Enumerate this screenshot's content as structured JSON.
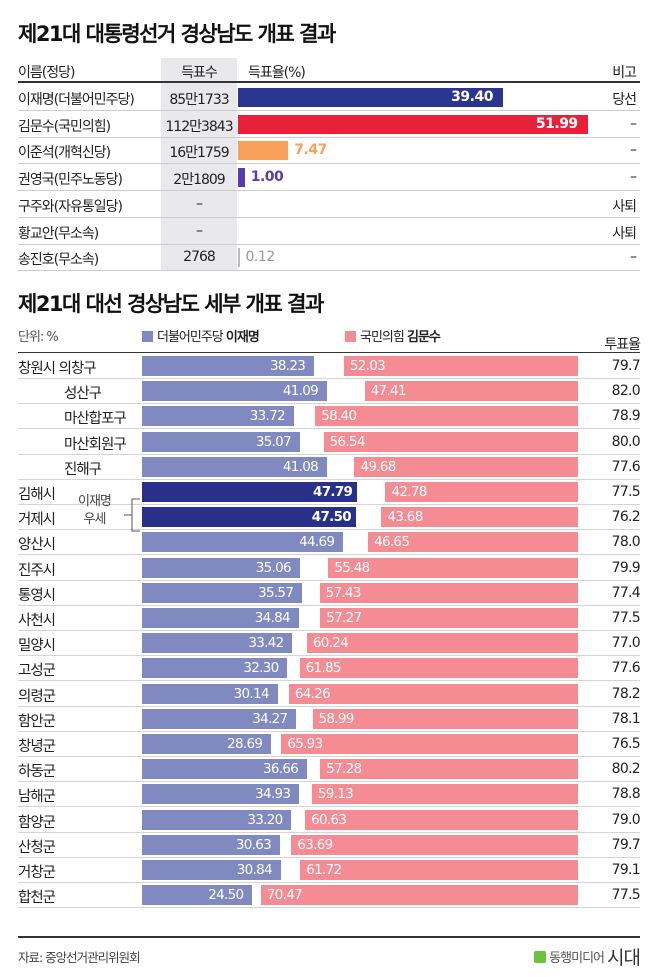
{
  "title": "제21대 대통령선거 경상남도 개표 결과",
  "colors": {
    "lee": "#2a3590",
    "kim": "#e8203a",
    "lee_jun": "#f9a05a",
    "kwon": "#5a3ab0",
    "other": "#999999",
    "lee_light": "#8189c1",
    "kim_light": "#f58b93",
    "lee_dominant": "#28308a"
  },
  "table": {
    "headers": {
      "name": "이름(정당)",
      "votes": "득표수",
      "rate": "득표율(%)",
      "note": "비고"
    },
    "rows": [
      {
        "name": "이재명(더불어민주당)",
        "votes": "85만1733",
        "rate": 39.4,
        "rate_label": "39.40",
        "note": "당선",
        "color_key": "lee",
        "label_inside": true
      },
      {
        "name": "김문수(국민의힘)",
        "votes": "112만3843",
        "rate": 51.99,
        "rate_label": "51.99",
        "note": "–",
        "color_key": "kim",
        "label_inside": true
      },
      {
        "name": "이준석(개혁신당)",
        "votes": "16만1759",
        "rate": 7.47,
        "rate_label": "7.47",
        "note": "–",
        "color_key": "lee_jun",
        "label_inside": false
      },
      {
        "name": "권영국(민주노동당)",
        "votes": "2만1809",
        "rate": 1.0,
        "rate_label": "1.00",
        "note": "–",
        "color_key": "kwon",
        "label_inside": false
      },
      {
        "name": "구주와(자유통일당)",
        "votes": "–",
        "rate": null,
        "rate_label": "",
        "note": "사퇴",
        "color_key": "other",
        "label_inside": false
      },
      {
        "name": "황교안(무소속)",
        "votes": "–",
        "rate": null,
        "rate_label": "",
        "note": "사퇴",
        "color_key": "other",
        "label_inside": false
      },
      {
        "name": "송진호(무소속)",
        "votes": "2768",
        "rate": 0.12,
        "rate_label": "0.12",
        "note": "–",
        "color_key": "other",
        "label_inside": false
      }
    ]
  },
  "chart_data": {
    "type": "bar",
    "title": "제21대 대선 경상남도 세부 개표 결과",
    "unit_label": "단위: %",
    "legend": [
      {
        "party": "더불어민주당",
        "name": "이재명"
      },
      {
        "party": "국민의힘",
        "name": "김문수"
      }
    ],
    "turnout_header": "투표율",
    "annotation": [
      "이재명",
      "우세"
    ],
    "categories": [
      "창원시 의창구",
      "성산구",
      "마산합포구",
      "마산회원구",
      "진해구",
      "김해시",
      "거제시",
      "양산시",
      "진주시",
      "통영시",
      "사천시",
      "밀양시",
      "고성군",
      "의령군",
      "함안군",
      "창녕군",
      "하동군",
      "남해군",
      "함양군",
      "산청군",
      "거창군",
      "합천군"
    ],
    "indent": [
      false,
      true,
      true,
      true,
      true,
      false,
      false,
      false,
      false,
      false,
      false,
      false,
      false,
      false,
      false,
      false,
      false,
      false,
      false,
      false,
      false,
      false
    ],
    "lee_dominant": [
      false,
      false,
      false,
      false,
      false,
      true,
      true,
      false,
      false,
      false,
      false,
      false,
      false,
      false,
      false,
      false,
      false,
      false,
      false,
      false,
      false,
      false
    ],
    "series": [
      {
        "name": "이재명",
        "values": [
          38.23,
          41.09,
          33.72,
          35.07,
          41.08,
          47.79,
          47.5,
          44.69,
          35.06,
          35.57,
          34.84,
          33.42,
          32.3,
          30.14,
          34.27,
          28.69,
          36.66,
          34.93,
          33.2,
          30.63,
          30.84,
          24.5
        ]
      },
      {
        "name": "김문수",
        "values": [
          52.03,
          47.41,
          58.4,
          56.54,
          49.68,
          42.78,
          43.68,
          46.65,
          55.48,
          57.43,
          57.27,
          60.24,
          61.85,
          64.26,
          58.99,
          65.93,
          57.28,
          59.13,
          60.63,
          63.69,
          61.72,
          70.47
        ]
      }
    ],
    "labels_lee": [
      "38.23",
      "41.09",
      "33.72",
      "35.07",
      "41.08",
      "47.79",
      "47.50",
      "44.69",
      "35.06",
      "35.57",
      "34.84",
      "33.42",
      "32.30",
      "30.14",
      "34.27",
      "28.69",
      "36.66",
      "34.93",
      "33.20",
      "30.63",
      "30.84",
      "24.50"
    ],
    "labels_kim": [
      "52.03",
      "47.41",
      "58.40",
      "56.54",
      "49.68",
      "42.78",
      "43.68",
      "46.65",
      "55.48",
      "57.43",
      "57.27",
      "60.24",
      "61.85",
      "64.26",
      "58.99",
      "65.93",
      "57.28",
      "59.13",
      "60.63",
      "63.69",
      "61.72",
      "70.47"
    ],
    "turnout": [
      "79.7",
      "82.0",
      "78.9",
      "80.0",
      "77.6",
      "77.5",
      "76.2",
      "78.0",
      "79.9",
      "77.4",
      "77.5",
      "77.0",
      "77.6",
      "78.2",
      "78.1",
      "76.5",
      "80.2",
      "78.8",
      "79.0",
      "79.7",
      "79.1",
      "77.5"
    ]
  },
  "footer": {
    "source": "자료: 중앙선거관리위원회",
    "brand": "동행미디어",
    "brand_mark": "시대"
  }
}
